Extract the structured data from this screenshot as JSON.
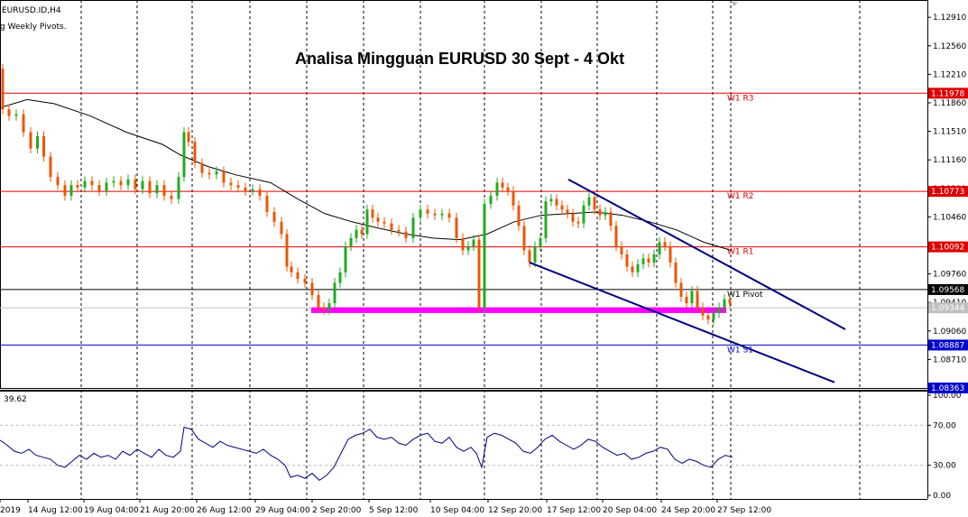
{
  "header": {
    "symbol": "EURUSD.ID,H4",
    "indicator": "g Weekly Pivots."
  },
  "chart_data": {
    "type": "candlestick",
    "title": "Analisa Mingguan EURUSD 30 Sept - 4 Okt",
    "ylim": [
      1.0836,
      1.131
    ],
    "y_ticks": [
      "1.12910",
      "1.12560",
      "1.12210",
      "1.11860",
      "1.11510",
      "1.11160",
      "1.10810",
      "1.10460",
      "1.10110",
      "1.09760",
      "1.09410",
      "1.09060",
      "1.08710"
    ],
    "x_ticks": [
      "2019",
      "14 Aug 12:00",
      "19 Aug 04:00",
      "21 Aug 20:00",
      "26 Aug 12:00",
      "29 Aug 04:00",
      "2 Sep 20:00",
      "5 Sep 12:00",
      "10 Sep 04:00",
      "12 Sep 20:00",
      "17 Sep 12:00",
      "20 Sep 04:00",
      "24 Sep 20:00",
      "27 Sep 12:00"
    ],
    "price_path": [
      [
        0,
        1.1228
      ],
      [
        6,
        1.1178
      ],
      [
        14,
        1.117
      ],
      [
        22,
        1.1172
      ],
      [
        30,
        1.115
      ],
      [
        38,
        1.113
      ],
      [
        45,
        1.1145
      ],
      [
        52,
        1.112
      ],
      [
        60,
        1.1095
      ],
      [
        68,
        1.1085
      ],
      [
        76,
        1.1072
      ],
      [
        82,
        1.1085
      ],
      [
        90,
        1.1082
      ],
      [
        98,
        1.109
      ],
      [
        106,
        1.1085
      ],
      [
        114,
        1.1078
      ],
      [
        122,
        1.1088
      ],
      [
        130,
        1.109
      ],
      [
        138,
        1.1085
      ],
      [
        146,
        1.1092
      ],
      [
        154,
        1.108
      ],
      [
        162,
        1.109
      ],
      [
        170,
        1.1075
      ],
      [
        178,
        1.1085
      ],
      [
        186,
        1.1072
      ],
      [
        194,
        1.1068
      ],
      [
        202,
        1.1095
      ],
      [
        206,
        1.115
      ],
      [
        212,
        1.1138
      ],
      [
        220,
        1.1112
      ],
      [
        228,
        1.11
      ],
      [
        236,
        1.1098
      ],
      [
        244,
        1.1102
      ],
      [
        252,
        1.1088
      ],
      [
        260,
        1.1085
      ],
      [
        268,
        1.1082
      ],
      [
        276,
        1.1078
      ],
      [
        284,
        1.108
      ],
      [
        292,
        1.1072
      ],
      [
        300,
        1.1052
      ],
      [
        308,
        1.104
      ],
      [
        316,
        1.1025
      ],
      [
        320,
        1.0985
      ],
      [
        326,
        1.0978
      ],
      [
        334,
        1.097
      ],
      [
        342,
        1.0965
      ],
      [
        350,
        1.095
      ],
      [
        356,
        1.0935
      ],
      [
        362,
        1.0932
      ],
      [
        368,
        1.094
      ],
      [
        374,
        1.0965
      ],
      [
        380,
        1.0978
      ],
      [
        386,
        1.101
      ],
      [
        392,
        1.102
      ],
      [
        398,
        1.103
      ],
      [
        404,
        1.1025
      ],
      [
        410,
        1.1055
      ],
      [
        416,
        1.1045
      ],
      [
        422,
        1.104
      ],
      [
        430,
        1.1038
      ],
      [
        438,
        1.103
      ],
      [
        446,
        1.1028
      ],
      [
        454,
        1.102
      ],
      [
        462,
        1.1045
      ],
      [
        470,
        1.1055
      ],
      [
        478,
        1.105
      ],
      [
        486,
        1.1048
      ],
      [
        494,
        1.105
      ],
      [
        502,
        1.1045
      ],
      [
        510,
        1.102
      ],
      [
        516,
        1.1005
      ],
      [
        522,
        1.101
      ],
      [
        528,
        1.1018
      ],
      [
        534,
        1.0935
      ],
      [
        540,
        1.1062
      ],
      [
        548,
        1.1072
      ],
      [
        554,
        1.1088
      ],
      [
        560,
        1.1082
      ],
      [
        566,
        1.1078
      ],
      [
        572,
        1.106
      ],
      [
        578,
        1.1035
      ],
      [
        584,
        1.1005
      ],
      [
        590,
        1.099
      ],
      [
        596,
        1.101
      ],
      [
        602,
        1.102
      ],
      [
        608,
        1.1065
      ],
      [
        614,
        1.1068
      ],
      [
        620,
        1.106
      ],
      [
        626,
        1.1055
      ],
      [
        632,
        1.105
      ],
      [
        638,
        1.104
      ],
      [
        644,
        1.1038
      ],
      [
        650,
        1.106
      ],
      [
        656,
        1.107
      ],
      [
        662,
        1.1055
      ],
      [
        668,
        1.1048
      ],
      [
        674,
        1.1052
      ],
      [
        680,
        1.1035
      ],
      [
        686,
        1.101
      ],
      [
        692,
        1.1
      ],
      [
        698,
        1.0985
      ],
      [
        704,
        1.0978
      ],
      [
        710,
        1.0988
      ],
      [
        716,
        1.0995
      ],
      [
        722,
        1.099
      ],
      [
        728,
        1.1
      ],
      [
        734,
        1.1015
      ],
      [
        740,
        1.101
      ],
      [
        746,
        1.099
      ],
      [
        752,
        1.0965
      ],
      [
        758,
        1.0948
      ],
      [
        764,
        1.094
      ],
      [
        770,
        1.0955
      ],
      [
        776,
        1.0935
      ],
      [
        782,
        1.0925
      ],
      [
        788,
        1.092
      ],
      [
        794,
        1.0928
      ],
      [
        800,
        1.0935
      ],
      [
        806,
        1.0945
      ],
      [
        812,
        1.094
      ]
    ],
    "moving_average": [
      [
        0,
        1.118
      ],
      [
        30,
        1.119
      ],
      [
        60,
        1.1185
      ],
      [
        100,
        1.117
      ],
      [
        140,
        1.115
      ],
      [
        180,
        1.1135
      ],
      [
        200,
        1.1122
      ],
      [
        230,
        1.1108
      ],
      [
        260,
        1.1098
      ],
      [
        300,
        1.1088
      ],
      [
        330,
        1.1068
      ],
      [
        360,
        1.105
      ],
      [
        390,
        1.104
      ],
      [
        420,
        1.1032
      ],
      [
        450,
        1.1025
      ],
      [
        480,
        1.102
      ],
      [
        510,
        1.1018
      ],
      [
        540,
        1.1025
      ],
      [
        570,
        1.104
      ],
      [
        600,
        1.1048
      ],
      [
        630,
        1.105
      ],
      [
        660,
        1.1052
      ],
      [
        690,
        1.1048
      ],
      [
        720,
        1.104
      ],
      [
        750,
        1.103
      ],
      [
        780,
        1.1015
      ],
      [
        810,
        1.1005
      ]
    ],
    "pivots": [
      {
        "name": "W1 R3",
        "value": 1.11978,
        "label": "1.11978",
        "color": "#dd0000"
      },
      {
        "name": "W1 R2",
        "value": 1.10773,
        "label": "1.10773",
        "color": "#dd0000"
      },
      {
        "name": "W1 R1",
        "value": 1.10092,
        "label": "1.10092",
        "color": "#dd0000"
      },
      {
        "name": "W1 Pivot",
        "value": 1.09568,
        "label": "1.09568",
        "color": "#000000"
      },
      {
        "name": "W1 S1",
        "value": 1.08887,
        "label": "1.08887",
        "color": "#0000cc"
      }
    ],
    "bid": {
      "value": 1.09344,
      "label": "1.09344"
    },
    "bottom_tag": {
      "value": 1.08363,
      "label": "1.08363"
    },
    "support_zone": {
      "x0": 345,
      "x1": 805,
      "y0": 1.0928,
      "y1": 1.0935,
      "color": "#ff00ff"
    },
    "channel_upper": [
      [
        630,
        1.1092
      ],
      [
        937,
        1.0908
      ]
    ],
    "channel_lower": [
      [
        587,
        1.099
      ],
      [
        925,
        1.0843
      ]
    ],
    "rsi": {
      "value_label": "39.62",
      "ticks": [
        "100.00",
        "70.00",
        "30.00",
        "0.00"
      ],
      "values": [
        [
          0,
          55
        ],
        [
          8,
          50
        ],
        [
          16,
          44
        ],
        [
          24,
          42
        ],
        [
          32,
          46
        ],
        [
          40,
          40
        ],
        [
          48,
          38
        ],
        [
          56,
          36
        ],
        [
          64,
          30
        ],
        [
          72,
          28
        ],
        [
          80,
          34
        ],
        [
          88,
          40
        ],
        [
          96,
          36
        ],
        [
          104,
          42
        ],
        [
          112,
          38
        ],
        [
          120,
          40
        ],
        [
          128,
          36
        ],
        [
          136,
          44
        ],
        [
          144,
          40
        ],
        [
          152,
          46
        ],
        [
          160,
          42
        ],
        [
          168,
          38
        ],
        [
          176,
          46
        ],
        [
          184,
          40
        ],
        [
          192,
          38
        ],
        [
          200,
          44
        ],
        [
          204,
          68
        ],
        [
          212,
          66
        ],
        [
          220,
          56
        ],
        [
          228,
          52
        ],
        [
          236,
          48
        ],
        [
          244,
          54
        ],
        [
          252,
          50
        ],
        [
          260,
          48
        ],
        [
          268,
          46
        ],
        [
          276,
          44
        ],
        [
          284,
          42
        ],
        [
          292,
          46
        ],
        [
          300,
          40
        ],
        [
          308,
          36
        ],
        [
          316,
          30
        ],
        [
          322,
          18
        ],
        [
          330,
          20
        ],
        [
          338,
          17
        ],
        [
          346,
          22
        ],
        [
          354,
          15
        ],
        [
          362,
          20
        ],
        [
          370,
          28
        ],
        [
          378,
          42
        ],
        [
          386,
          56
        ],
        [
          394,
          60
        ],
        [
          402,
          62
        ],
        [
          410,
          66
        ],
        [
          418,
          58
        ],
        [
          426,
          56
        ],
        [
          434,
          58
        ],
        [
          442,
          52
        ],
        [
          450,
          50
        ],
        [
          458,
          56
        ],
        [
          466,
          60
        ],
        [
          474,
          62
        ],
        [
          482,
          54
        ],
        [
          490,
          52
        ],
        [
          498,
          58
        ],
        [
          506,
          48
        ],
        [
          514,
          44
        ],
        [
          522,
          48
        ],
        [
          528,
          42
        ],
        [
          534,
          28
        ],
        [
          540,
          58
        ],
        [
          548,
          62
        ],
        [
          556,
          60
        ],
        [
          564,
          56
        ],
        [
          572,
          52
        ],
        [
          580,
          44
        ],
        [
          588,
          42
        ],
        [
          596,
          48
        ],
        [
          604,
          56
        ],
        [
          612,
          60
        ],
        [
          620,
          54
        ],
        [
          628,
          50
        ],
        [
          636,
          46
        ],
        [
          644,
          50
        ],
        [
          652,
          56
        ],
        [
          660,
          54
        ],
        [
          668,
          48
        ],
        [
          676,
          44
        ],
        [
          684,
          40
        ],
        [
          692,
          42
        ],
        [
          700,
          36
        ],
        [
          708,
          38
        ],
        [
          716,
          42
        ],
        [
          724,
          44
        ],
        [
          732,
          48
        ],
        [
          740,
          46
        ],
        [
          748,
          36
        ],
        [
          756,
          32
        ],
        [
          764,
          36
        ],
        [
          772,
          34
        ],
        [
          780,
          30
        ],
        [
          788,
          28
        ],
        [
          796,
          36
        ],
        [
          804,
          40
        ],
        [
          812,
          38
        ]
      ]
    }
  }
}
